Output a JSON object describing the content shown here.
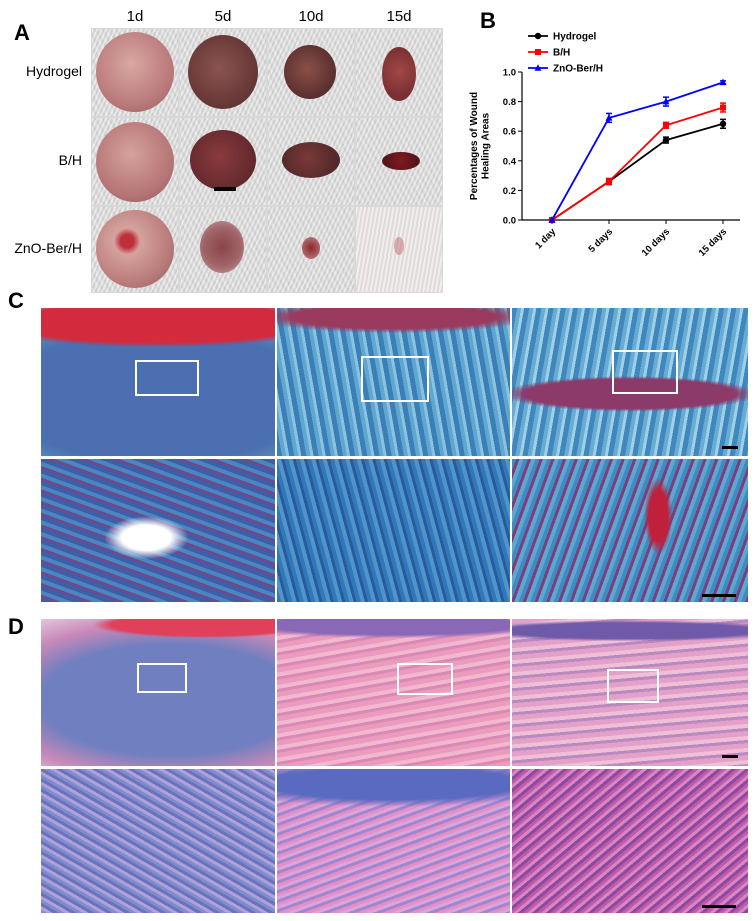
{
  "panels": {
    "a": "A",
    "b": "B",
    "c": "C",
    "d": "D"
  },
  "panel_a": {
    "columns": [
      "1d",
      "5d",
      "10d",
      "15d"
    ],
    "rows": [
      "Hydrogel",
      "B/H",
      "ZnO-Ber/H"
    ]
  },
  "chart_data": {
    "type": "line",
    "title": "",
    "xlabel": "",
    "ylabel": "Percentages of Wound Healing Areas",
    "categories": [
      "1 day",
      "5 days",
      "10 days",
      "15 days"
    ],
    "ylim": [
      0,
      1.0
    ],
    "yticks": [
      "0.0",
      "0.2",
      "0.4",
      "0.6",
      "0.8",
      "1.0"
    ],
    "grid": false,
    "legend_position": "top-left",
    "series": [
      {
        "name": "Hydrogel",
        "color": "#000000",
        "marker": "circle",
        "values": [
          0.0,
          0.26,
          0.54,
          0.65
        ],
        "errors": [
          0.0,
          0.02,
          0.02,
          0.03
        ]
      },
      {
        "name": "B/H",
        "color": "#ff0000",
        "marker": "square",
        "values": [
          0.0,
          0.26,
          0.64,
          0.76
        ],
        "errors": [
          0.0,
          0.02,
          0.02,
          0.03
        ]
      },
      {
        "name": "ZnO-Ber/H",
        "color": "#0000ff",
        "marker": "triangle",
        "values": [
          0.0,
          0.69,
          0.8,
          0.93
        ],
        "errors": [
          0.0,
          0.03,
          0.03,
          0.01
        ]
      }
    ]
  },
  "colors": {
    "masson_blue": "#3a7fb8",
    "masson_red": "#c8223a",
    "he_pink": "#e48ab0",
    "he_purple": "#7a62b6"
  }
}
